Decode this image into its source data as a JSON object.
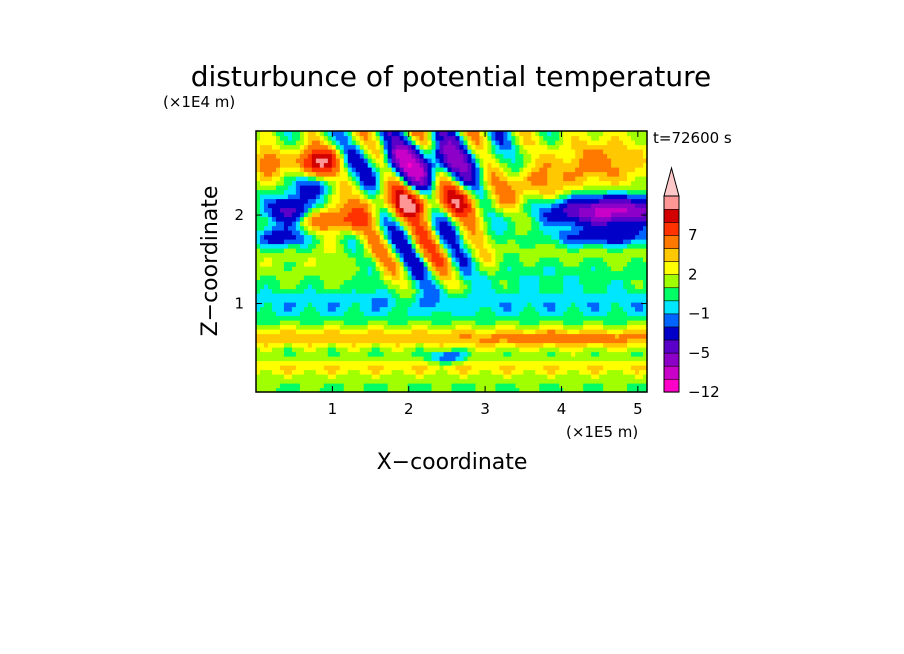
{
  "chart_data": {
    "type": "heatmap",
    "title": "disturbunce of potential temperature",
    "xlabel": "X−coordinate",
    "ylabel": "Z−coordinate",
    "x_unit": "(×1E5 m)",
    "y_unit": "(×1E4 m)",
    "time_label": "t=72600 s",
    "xlim": [
      0,
      5.12
    ],
    "ylim": [
      0,
      2.95
    ],
    "x_ticks": [
      1,
      2,
      3,
      4,
      5
    ],
    "y_ticks": [
      1,
      2
    ],
    "x_tick_labels": [
      "1",
      "2",
      "3",
      "4",
      "5"
    ],
    "y_tick_labels": [
      "1",
      "2"
    ],
    "colorbar": {
      "levels": [
        -12,
        -9,
        -7,
        -5,
        -3,
        -2,
        -1,
        0,
        1,
        2,
        3,
        5,
        7,
        9,
        12
      ],
      "level_colors": [
        "#ff00c8",
        "#c800c8",
        "#8c00c8",
        "#5a00c8",
        "#0000c8",
        "#0064ff",
        "#00e6ff",
        "#00ff64",
        "#a0ff00",
        "#ffff00",
        "#ffc800",
        "#ff7800",
        "#ff3200",
        "#d20000",
        "#ff9696",
        "#ffc8c8"
      ],
      "extend": "max",
      "tick_labels": [
        "−12",
        "−5",
        "−1",
        "2",
        "7"
      ],
      "tick_values": [
        -12,
        -5,
        -1,
        2,
        7
      ]
    },
    "grid": false
  }
}
